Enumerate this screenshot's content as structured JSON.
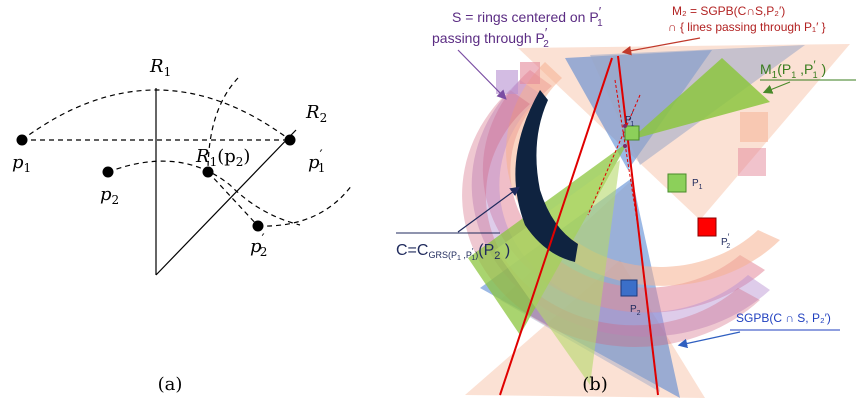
{
  "panel_a": {
    "caption": "(a)",
    "labels": {
      "R1": "R",
      "R1_sub": "1",
      "R2": "R",
      "R2_sub": "2",
      "p1": "p",
      "p1_sub": "1",
      "p2": "p",
      "p2_sub": "2",
      "p1p": "p",
      "p1p_sub": "1",
      "p2p": "p",
      "p2p_sub": "2",
      "R1p2_R": "R",
      "R1p2_sub": "1",
      "R1p2_arg": "(p",
      "R1p2_arg_sub": "2",
      "R1p2_close": ")",
      "prime": "′"
    }
  },
  "panel_b": {
    "caption": "(b)",
    "annotations": {
      "S_line1": "S = rings centered on P",
      "S_line1_sub": "1",
      "S_line2": "passing  through P",
      "S_line2_sub": "2",
      "M2_line1": "M₂ = SGPB(C∩S,P₂′)",
      "M2_line2": "∩ { lines passing through P₁′ }",
      "M1": "M",
      "M1_sub": "1",
      "M1_args": "(P",
      "M1_args_sub1": "1",
      "M1_args_mid": " ,P",
      "M1_args_sub2": "1",
      "M1_args_close": " )",
      "C_main": "C=C",
      "C_sub": "GRS(P",
      "C_sub2": "1",
      "C_sub3": " ,P",
      "C_sub4": "1",
      "C_sub5": ")",
      "C_tail": "(P",
      "C_tail_sub": "2",
      "C_tail_close": " )",
      "SGPB": "SGPB(C ∩ S, P₂′)",
      "P1_label": "P",
      "P1_sub": "1",
      "P1p_label": "P",
      "P1p_sub": "1",
      "P2_label": "P",
      "P2_sub": "2",
      "P2p_label": "P",
      "P2p_sub": "2",
      "prime": "′"
    },
    "colors": {
      "purple_text": "#5b2c83",
      "red_text": "#b22222",
      "green_text": "#3a7d1e",
      "blue_text": "#1f3fbf",
      "navy_text": "#1f2a5c",
      "blue_shape": "#4a7fd0",
      "green_shape": "#8cc63f",
      "navy_shape": "#0f2340",
      "red_square": "#ff0000",
      "blue_square": "#3b6fc9",
      "green_square": "#8cd05a"
    }
  }
}
